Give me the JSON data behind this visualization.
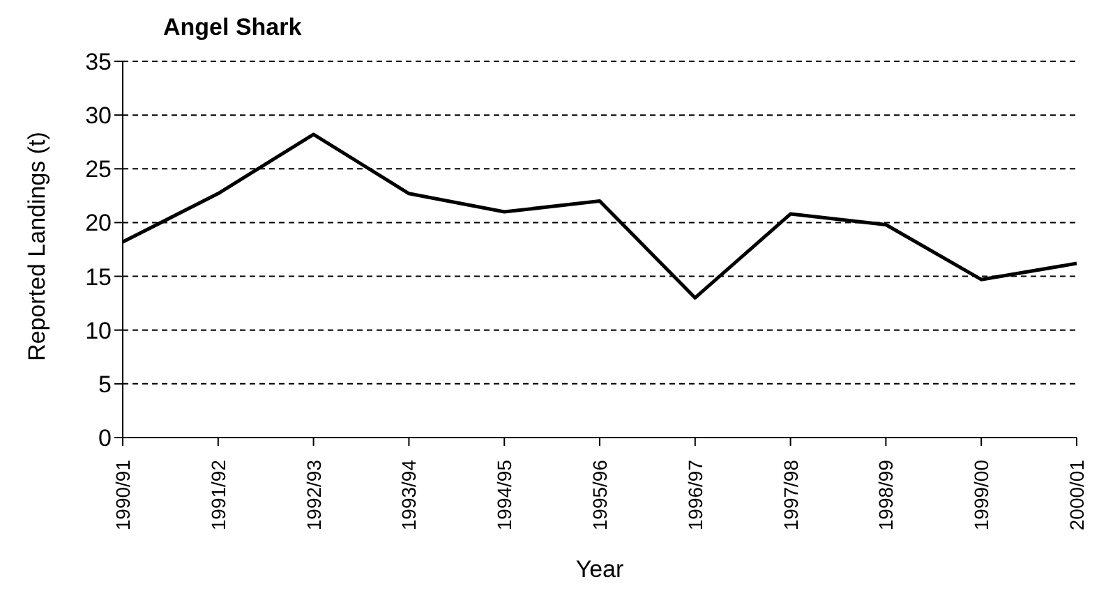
{
  "chart_data": {
    "type": "line",
    "title": "Angel Shark",
    "xlabel": "Year",
    "ylabel": "Reported Landings (t)",
    "categories": [
      "1990/91",
      "1991/92",
      "1992/93",
      "1993/94",
      "1994/95",
      "1995/96",
      "1996/97",
      "1997/98",
      "1998/99",
      "1999/00",
      "2000/01"
    ],
    "series": [
      {
        "color": "#000000",
        "values": [
          18.2,
          22.7,
          28.2,
          22.7,
          21,
          22,
          13,
          20.8,
          19.8,
          14.7,
          16.2
        ]
      }
    ],
    "ylim": [
      0,
      35
    ],
    "yticks": [
      0,
      5,
      10,
      15,
      20,
      25,
      30,
      35
    ],
    "grid": "y",
    "legend": false,
    "marker": "none",
    "line_style": "solid"
  }
}
